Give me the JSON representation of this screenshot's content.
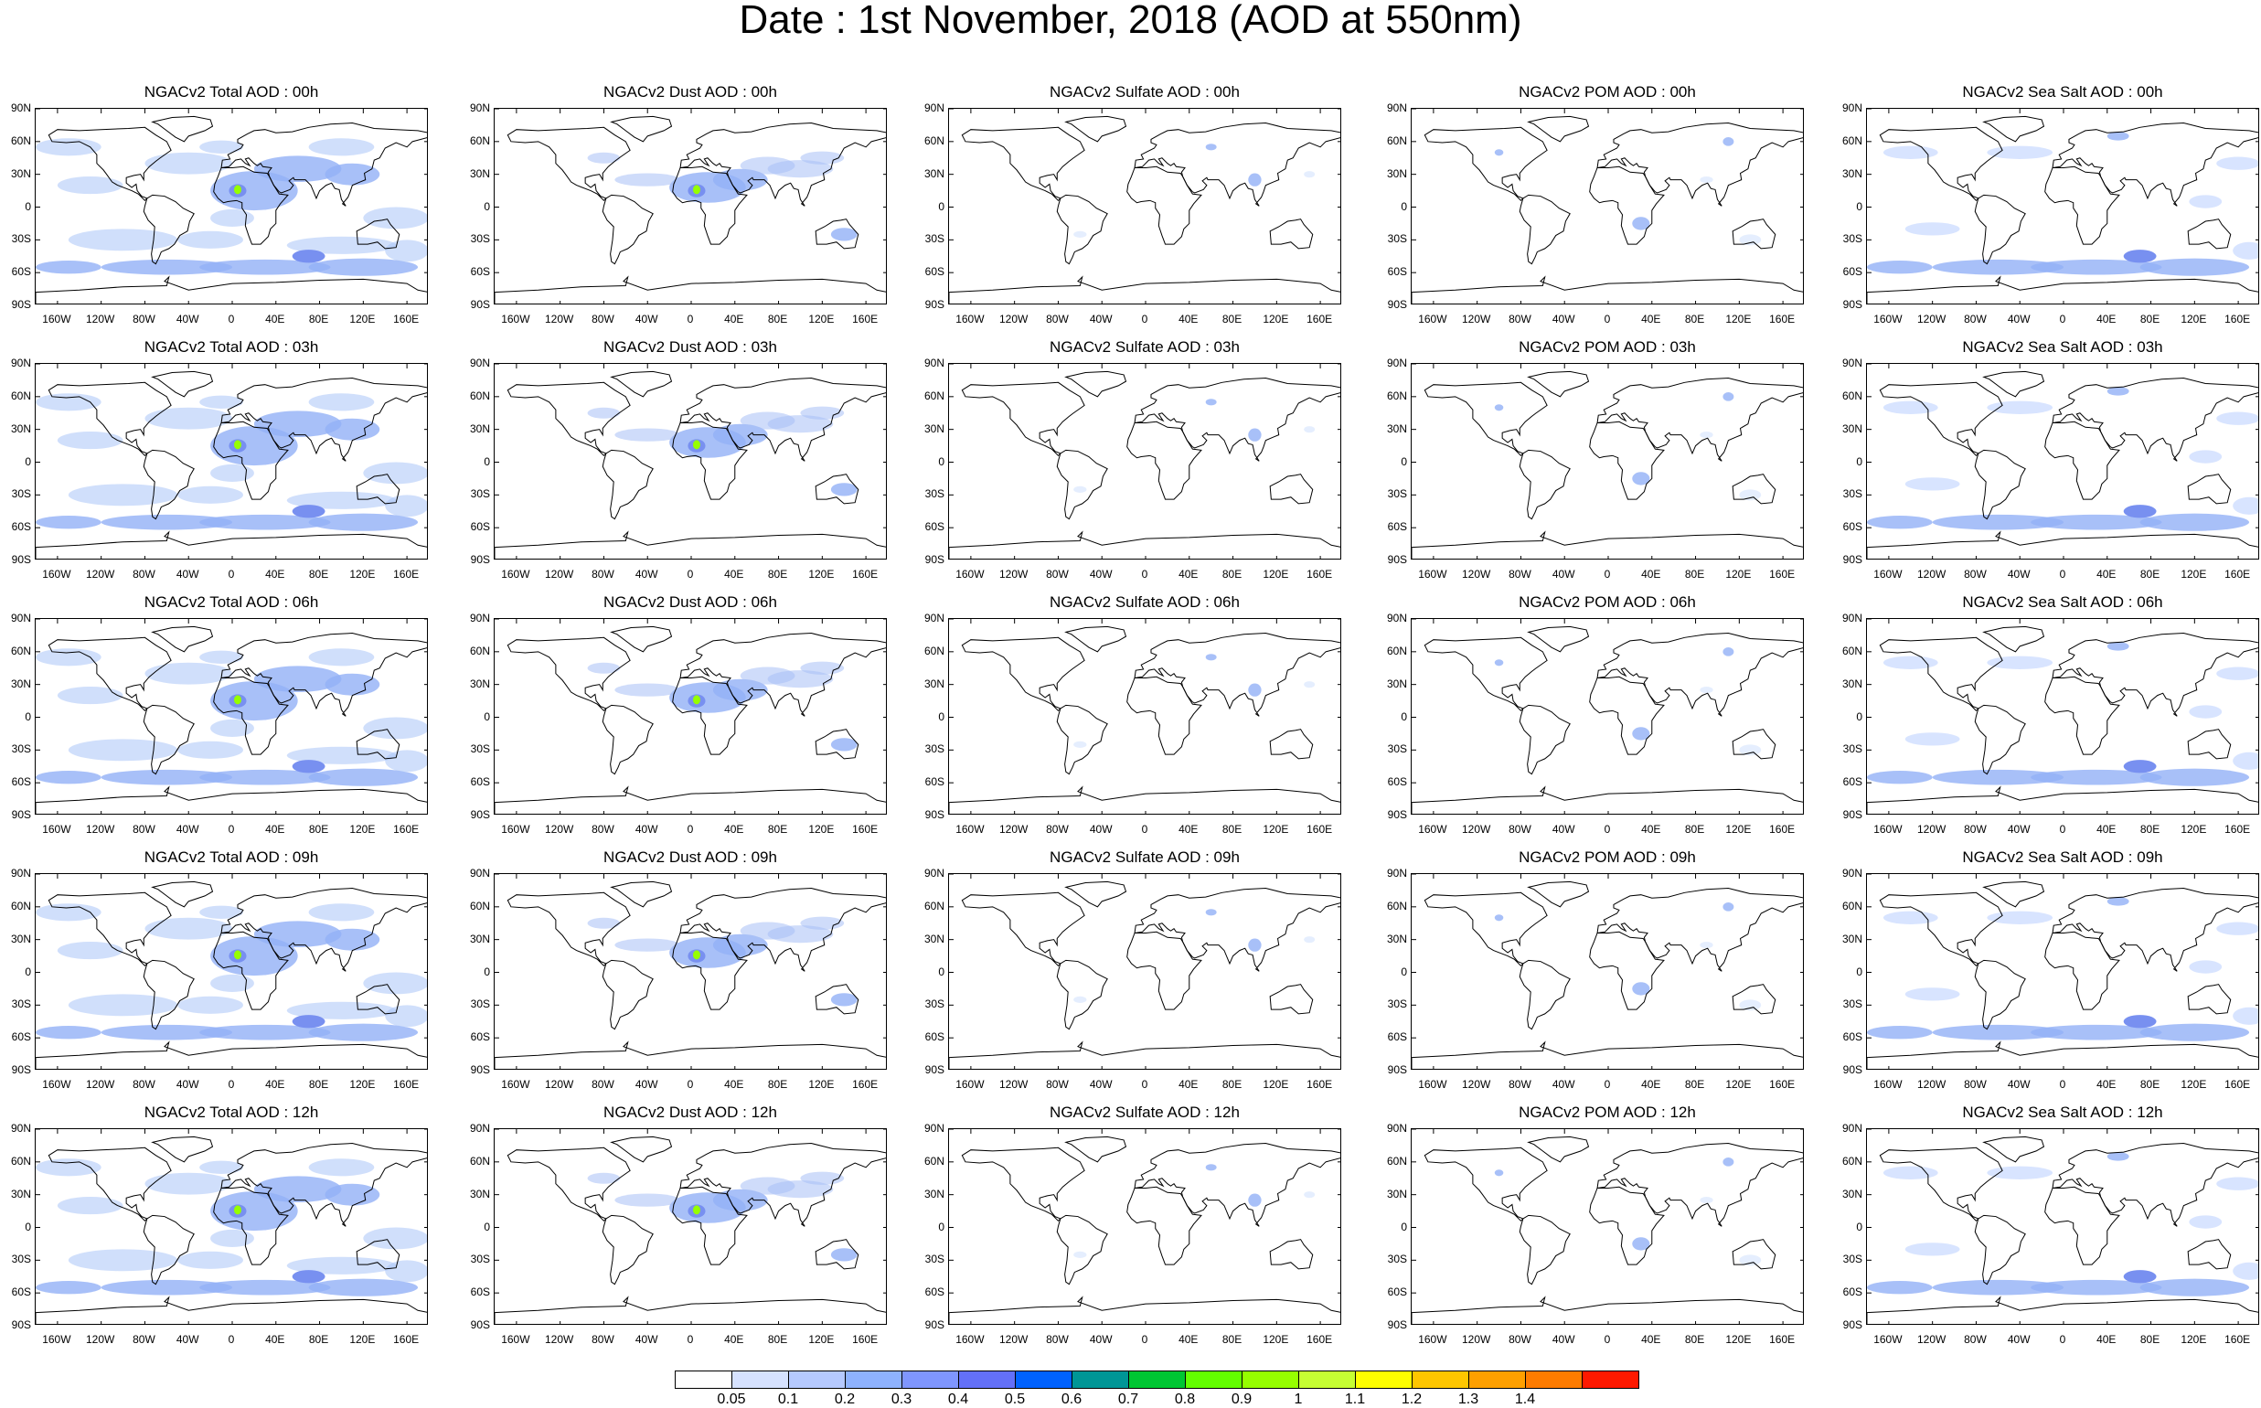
{
  "title": "Date : 1st November, 2018 (AOD at 550nm)",
  "lat_ticks": [
    "90N",
    "60N",
    "30N",
    "0",
    "30S",
    "60S",
    "90S"
  ],
  "lon_ticks": [
    "160W",
    "120W",
    "80W",
    "40W",
    "0",
    "40E",
    "80E",
    "120E",
    "160E"
  ],
  "species": [
    {
      "key": "total",
      "name": "Total",
      "color": "#aac4f8",
      "border": "#1e2a6e"
    },
    {
      "key": "dust",
      "name": "Dust",
      "color": "#a8c0f6",
      "border": "#1e2a6e"
    },
    {
      "key": "sulfate",
      "name": "Sulfate",
      "color": "#cfe0fd",
      "border": "#1e2a6e"
    },
    {
      "key": "pom",
      "name": "POM",
      "color": "#cfe0fd",
      "border": "#1e2a6e"
    },
    {
      "key": "seasalt",
      "name": "Sea Salt",
      "color": "#b8ceff",
      "border": "#1e2a6e"
    }
  ],
  "panel_titles": [
    [
      "NGACv2 Total AOD : 00h",
      "NGACv2 Dust AOD : 00h",
      "NGACv2 Sulfate AOD : 00h",
      "NGACv2 POM AOD : 00h",
      "NGACv2 Sea Salt AOD : 00h"
    ],
    [
      "NGACv2 Total AOD : 03h",
      "NGACv2 Dust AOD : 03h",
      "NGACv2 Sulfate AOD : 03h",
      "NGACv2 POM AOD : 03h",
      "NGACv2 Sea Salt AOD : 03h"
    ],
    [
      "NGACv2 Total AOD : 06h",
      "NGACv2 Dust AOD : 06h",
      "NGACv2 Sulfate AOD : 06h",
      "NGACv2 POM AOD : 06h",
      "NGACv2 Sea Salt AOD : 06h"
    ],
    [
      "NGACv2 Total AOD : 09h",
      "NGACv2 Dust AOD : 09h",
      "NGACv2 Sulfate AOD : 09h",
      "NGACv2 POM AOD : 09h",
      "NGACv2 Sea Salt  AOD : 09h"
    ],
    [
      "NGACv2 Total AOD : 12h",
      "NGACv2 Dust AOD : 12h",
      "NGACv2 Sulfate AOD : 12h",
      "NGACv2 POM  AOD : 12h",
      "NGACv2 Sea Salt  AOD : 12h"
    ]
  ],
  "colorbar": {
    "levels": [
      "0.05",
      "0.1",
      "0.2",
      "0.3",
      "0.4",
      "0.5",
      "0.6",
      "0.7",
      "0.8",
      "0.9",
      "1",
      "1.1",
      "1.2",
      "1.3",
      "1.4"
    ],
    "colors": [
      "#ffffff",
      "#d6e2ff",
      "#b5c9ff",
      "#8eb2ff",
      "#7f96ff",
      "#6370f8",
      "#0062ff",
      "#009696",
      "#00c633",
      "#63ff00",
      "#96ff00",
      "#c6ff33",
      "#ffff00",
      "#ffc600",
      "#ffa000",
      "#ff7c00",
      "#ff1900"
    ]
  }
}
